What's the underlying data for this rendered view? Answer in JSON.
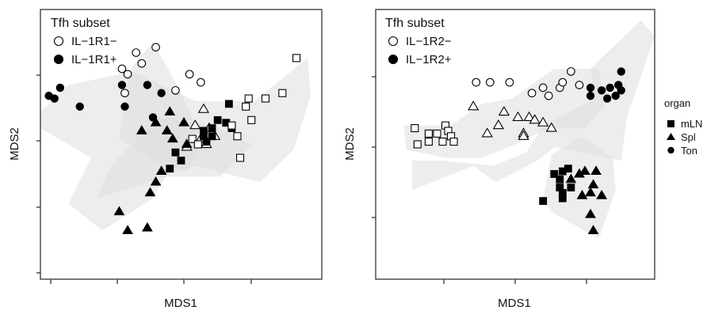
{
  "chart_data": [
    {
      "type": "scatter",
      "xlabel": "MDS1",
      "ylabel": "MDS2",
      "xlim": [
        0,
        100
      ],
      "ylim": [
        0,
        100
      ],
      "grid": false,
      "legend": {
        "title": "Tfh subset",
        "placement": "top-left",
        "entries": [
          {
            "label": "IL−1R1−",
            "fill": "open"
          },
          {
            "label": "IL−1R1+",
            "fill": "filled"
          }
        ]
      },
      "hull_color": "#dedede",
      "hulls": [
        [
          [
            0,
            62
          ],
          [
            10,
            72
          ],
          [
            33,
            77
          ],
          [
            55,
            66
          ],
          [
            76,
            66
          ],
          [
            95,
            82
          ],
          [
            96,
            68
          ],
          [
            90,
            48
          ],
          [
            78,
            36
          ],
          [
            55,
            42
          ],
          [
            45,
            39
          ],
          [
            40,
            30
          ],
          [
            22,
            18
          ],
          [
            10,
            28
          ],
          [
            18,
            45
          ],
          [
            0,
            56
          ]
        ],
        [
          [
            28,
            52
          ],
          [
            32,
            78
          ],
          [
            40,
            88
          ],
          [
            48,
            73
          ],
          [
            54,
            60
          ],
          [
            56,
            48
          ],
          [
            52,
            40
          ],
          [
            40,
            44
          ]
        ],
        [
          [
            20,
            30
          ],
          [
            25,
            42
          ],
          [
            42,
            60
          ],
          [
            62,
            57
          ],
          [
            75,
            50
          ],
          [
            64,
            38
          ],
          [
            45,
            38
          ]
        ]
      ],
      "series": [
        {
          "name": "IL−1R1−",
          "shape": "circle",
          "fill": "open",
          "organ": "Ton",
          "points": [
            [
              34,
              84
            ],
            [
              36,
              80
            ],
            [
              41,
              86
            ],
            [
              29,
              78
            ],
            [
              31,
              76
            ],
            [
              30,
              69
            ],
            [
              53,
              76
            ],
            [
              57,
              73
            ],
            [
              48,
              70
            ]
          ]
        },
        {
          "name": "IL−1R1+",
          "shape": "circle",
          "fill": "filled",
          "organ": "Ton",
          "points": [
            [
              7,
              71
            ],
            [
              3,
              68
            ],
            [
              5,
              67
            ],
            [
              14,
              64
            ],
            [
              29,
              72
            ],
            [
              38,
              72
            ],
            [
              43,
              69
            ],
            [
              40,
              60
            ],
            [
              30,
              64
            ]
          ]
        },
        {
          "name": "IL−1R1−",
          "shape": "triangle",
          "fill": "open",
          "organ": "Spl",
          "points": [
            [
              58,
              63
            ],
            [
              55,
              57
            ],
            [
              60,
              56
            ],
            [
              62,
              53
            ],
            [
              57,
              52
            ],
            [
              59,
              50
            ],
            [
              52,
              49
            ]
          ]
        },
        {
          "name": "IL−1R1+",
          "shape": "triangle",
          "fill": "filled",
          "organ": "Spl",
          "points": [
            [
              46,
              62
            ],
            [
              41,
              58
            ],
            [
              51,
              58
            ],
            [
              36,
              55
            ],
            [
              45,
              55
            ],
            [
              47,
              52
            ],
            [
              52,
              50
            ],
            [
              43,
              40
            ],
            [
              41,
              36
            ],
            [
              39,
              32
            ],
            [
              28,
              25
            ],
            [
              31,
              18
            ],
            [
              38,
              19
            ]
          ]
        },
        {
          "name": "IL−1R1+",
          "shape": "square",
          "fill": "filled",
          "organ": "mLN",
          "points": [
            [
              67,
              65
            ],
            [
              63,
              59
            ],
            [
              66,
              58
            ],
            [
              61,
              56
            ],
            [
              58,
              55
            ],
            [
              68,
              56
            ],
            [
              61,
              53
            ],
            [
              59,
              51
            ],
            [
              48,
              47
            ],
            [
              50,
              44
            ],
            [
              46,
              41
            ],
            [
              58,
              53
            ]
          ]
        },
        {
          "name": "IL−1R1−",
          "shape": "square",
          "fill": "open",
          "organ": "mLN",
          "points": [
            [
              91,
              82
            ],
            [
              86,
              69
            ],
            [
              80,
              67
            ],
            [
              74,
              67
            ],
            [
              73,
              64
            ],
            [
              75,
              59
            ],
            [
              68,
              57
            ],
            [
              70,
              53
            ],
            [
              71,
              45
            ],
            [
              54,
              52
            ],
            [
              56,
              50
            ]
          ]
        }
      ],
      "organ_legend": {
        "title": "organ",
        "entries": [
          {
            "label": "mLN",
            "shape": "square"
          },
          {
            "label": "Spl",
            "shape": "triangle"
          },
          {
            "label": "Ton",
            "shape": "circle"
          }
        ]
      }
    },
    {
      "type": "scatter",
      "xlabel": "MDS1",
      "ylabel": "MDS2",
      "xlim": [
        0,
        100
      ],
      "ylim": [
        0,
        100
      ],
      "grid": false,
      "legend": {
        "title": "Tfh subset",
        "placement": "top-left",
        "entries": [
          {
            "label": "IL−1R2−",
            "fill": "open"
          },
          {
            "label": "IL−1R2+",
            "fill": "filled"
          }
        ]
      },
      "hull_color": "#dedede",
      "hulls": [
        [
          [
            13,
            33
          ],
          [
            13,
            44
          ],
          [
            24,
            44
          ],
          [
            42,
            42
          ],
          [
            54,
            47
          ],
          [
            60,
            57
          ],
          [
            77,
            66
          ],
          [
            78,
            72
          ],
          [
            77,
            78
          ],
          [
            95,
            96
          ],
          [
            100,
            90
          ],
          [
            90,
            60
          ],
          [
            88,
            44
          ],
          [
            64,
            49
          ],
          [
            58,
            44
          ],
          [
            43,
            36
          ],
          [
            35,
            42
          ]
        ],
        [
          [
            11,
            48
          ],
          [
            10,
            57
          ],
          [
            27,
            57
          ],
          [
            38,
            65
          ],
          [
            49,
            67
          ],
          [
            64,
            78
          ],
          [
            80,
            78
          ],
          [
            82,
            64
          ],
          [
            75,
            56
          ],
          [
            62,
            56
          ],
          [
            50,
            50
          ],
          [
            38,
            45
          ],
          [
            25,
            45
          ]
        ],
        [
          [
            60,
            30
          ],
          [
            63,
            46
          ],
          [
            73,
            53
          ],
          [
            78,
            50
          ],
          [
            85,
            45
          ],
          [
            86,
            33
          ],
          [
            80,
            15
          ],
          [
            63,
            25
          ]
        ]
      ],
      "series": [
        {
          "name": "IL−1R2−",
          "shape": "circle",
          "fill": "open",
          "organ": "Ton",
          "points": [
            [
              36,
              73
            ],
            [
              41,
              73
            ],
            [
              48,
              73
            ],
            [
              56,
              69
            ],
            [
              60,
              71
            ],
            [
              66,
              71
            ],
            [
              67,
              73
            ],
            [
              70,
              77
            ],
            [
              73,
              72
            ],
            [
              62,
              68
            ]
          ]
        },
        {
          "name": "IL−1R2+",
          "shape": "circle",
          "fill": "filled",
          "organ": "Ton",
          "points": [
            [
              88,
              77
            ],
            [
              77,
              71
            ],
            [
              81,
              70
            ],
            [
              84,
              71
            ],
            [
              87,
              72
            ],
            [
              88,
              70
            ],
            [
              77,
              68
            ],
            [
              83,
              67
            ],
            [
              86,
              68
            ]
          ]
        },
        {
          "name": "IL−1R2−",
          "shape": "triangle",
          "fill": "open",
          "organ": "Spl",
          "points": [
            [
              35,
              64
            ],
            [
              46,
              62
            ],
            [
              51,
              60
            ],
            [
              55,
              60
            ],
            [
              57,
              59
            ],
            [
              60,
              58
            ],
            [
              44,
              57
            ],
            [
              63,
              56
            ],
            [
              53,
              54
            ],
            [
              53,
              53
            ],
            [
              40,
              54
            ]
          ]
        },
        {
          "name": "IL−1R2+",
          "shape": "triangle",
          "fill": "filled",
          "organ": "Spl",
          "points": [
            [
              79,
              40
            ],
            [
              75,
              40
            ],
            [
              73,
              39
            ],
            [
              70,
              37
            ],
            [
              78,
              35
            ],
            [
              77,
              32
            ],
            [
              74,
              31
            ],
            [
              81,
              31
            ],
            [
              77,
              24
            ],
            [
              78,
              18
            ]
          ]
        },
        {
          "name": "IL−1R2−",
          "shape": "square",
          "fill": "open",
          "organ": "mLN",
          "points": [
            [
              14,
              56
            ],
            [
              19,
              54
            ],
            [
              22,
              54
            ],
            [
              25,
              57
            ],
            [
              26,
              55
            ],
            [
              27,
              53
            ],
            [
              28,
              51
            ],
            [
              24,
              51
            ],
            [
              19,
              51
            ],
            [
              15,
              50
            ]
          ]
        },
        {
          "name": "IL−1R2+",
          "shape": "square",
          "fill": "filled",
          "organ": "mLN",
          "points": [
            [
              69,
              41
            ],
            [
              67,
              40
            ],
            [
              64,
              39
            ],
            [
              66,
              37
            ],
            [
              66,
              34
            ],
            [
              70,
              34
            ],
            [
              67,
              32
            ],
            [
              60,
              29
            ],
            [
              67,
              30
            ]
          ]
        }
      ]
    }
  ]
}
